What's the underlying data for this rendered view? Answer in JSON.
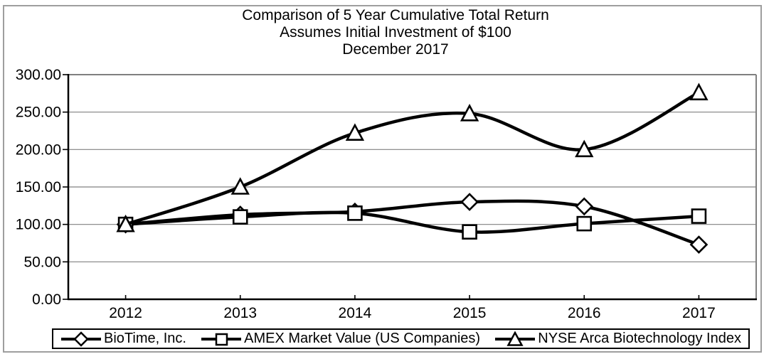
{
  "chart_data": {
    "type": "line",
    "title": "Comparison of 5 Year Cumulative Total Return",
    "subtitle": "Assumes Initial Investment of $100",
    "date_label": "December 2017",
    "categories": [
      "2012",
      "2013",
      "2014",
      "2015",
      "2016",
      "2017"
    ],
    "series": [
      {
        "name": "BioTime, Inc.",
        "marker": "diamond",
        "values": [
          100,
          113,
          117,
          130,
          124,
          73
        ]
      },
      {
        "name": "AMEX Market Value (US Companies)",
        "marker": "square",
        "values": [
          100,
          110,
          115,
          90,
          101,
          111
        ]
      },
      {
        "name": "NYSE Arca Biotechnology Index",
        "marker": "triangle",
        "values": [
          100,
          150,
          222,
          248,
          200,
          276
        ]
      }
    ],
    "ylim": [
      0,
      300
    ],
    "ytick_step": 50,
    "ytick_labels": [
      "0.00",
      "50.00",
      "100.00",
      "150.00",
      "200.00",
      "250.00",
      "300.00"
    ],
    "grid": true,
    "smoothed_lines": true,
    "legend_position": "bottom",
    "colors": {
      "line": "#000000",
      "marker_fill": "#ffffff",
      "grid": "#808080",
      "axis": "#000000",
      "outer_border": "#9e9e9e",
      "background": "#ffffff"
    }
  }
}
